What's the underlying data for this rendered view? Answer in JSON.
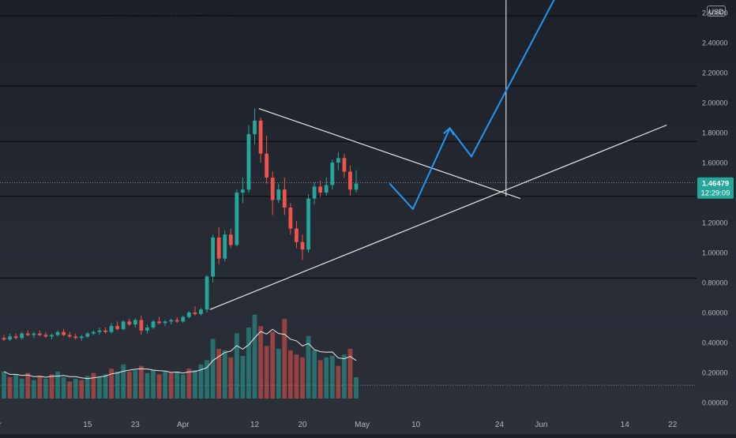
{
  "chart_data": {
    "type": "candlestick",
    "price_axis": {
      "currency": "USD",
      "tick_labels": [
        "2.60000",
        "2.40000",
        "2.20000",
        "2.00000",
        "1.80000",
        "1.60000",
        "1.40000",
        "1.20000",
        "1.00000",
        "0.80000",
        "0.60000",
        "0.40000",
        "0.20000",
        "0.00000"
      ],
      "tick_values": [
        2.6,
        2.4,
        2.2,
        2.0,
        1.8,
        1.6,
        1.4,
        1.2,
        1.0,
        0.8,
        0.6,
        0.4,
        0.2,
        0.0
      ],
      "ylim": [
        -0.08,
        2.7
      ]
    },
    "current_price": {
      "value": 1.46479,
      "label": "1.46479",
      "countdown": "12:29:09"
    },
    "time_axis": {
      "tick_labels": [
        "ar",
        "15",
        "23",
        "Apr",
        "12",
        "20",
        "May",
        "10",
        "24",
        "Jun",
        "14",
        "22"
      ],
      "tick_days": [
        -1,
        14,
        22,
        30,
        42,
        50,
        60,
        69,
        83,
        90,
        104,
        112
      ]
    },
    "colors": {
      "up": "#26a69a",
      "down": "#ef5350",
      "projection": "#2196f3",
      "lines": "#e8e8e8",
      "price_label_bg": "#26a69a"
    },
    "horizontal_levels": [
      2.58,
      2.11,
      1.74,
      1.375,
      0.83
    ],
    "dotted_levels": [
      1.465,
      0.115
    ],
    "trend_lines": [
      {
        "x": [
          34.5,
          111
        ],
        "y": [
          0.62,
          1.85
        ]
      },
      {
        "x": [
          42.7,
          86.5
        ],
        "y": [
          1.96,
          1.36
        ]
      }
    ],
    "upper_dashed_line": {
      "x": [
        -3,
        113
      ],
      "y": [
        2.52,
        2.74
      ]
    },
    "vertical_marker_day": 84.1,
    "projection_path": {
      "x": [
        64.6,
        68.5,
        74.7,
        78.3,
        93
      ],
      "y": [
        1.46,
        1.29,
        1.83,
        1.64,
        2.75
      ]
    },
    "candles": [
      {
        "o": 0.43,
        "h": 0.45,
        "l": 0.41,
        "c": 0.42
      },
      {
        "o": 0.42,
        "h": 0.46,
        "l": 0.41,
        "c": 0.44
      },
      {
        "o": 0.44,
        "h": 0.46,
        "l": 0.42,
        "c": 0.43
      },
      {
        "o": 0.43,
        "h": 0.47,
        "l": 0.42,
        "c": 0.46
      },
      {
        "o": 0.46,
        "h": 0.48,
        "l": 0.44,
        "c": 0.45
      },
      {
        "o": 0.45,
        "h": 0.47,
        "l": 0.43,
        "c": 0.46
      },
      {
        "o": 0.46,
        "h": 0.48,
        "l": 0.44,
        "c": 0.45
      },
      {
        "o": 0.45,
        "h": 0.47,
        "l": 0.43,
        "c": 0.44
      },
      {
        "o": 0.44,
        "h": 0.46,
        "l": 0.42,
        "c": 0.45
      },
      {
        "o": 0.45,
        "h": 0.48,
        "l": 0.44,
        "c": 0.47
      },
      {
        "o": 0.47,
        "h": 0.49,
        "l": 0.44,
        "c": 0.45
      },
      {
        "o": 0.45,
        "h": 0.47,
        "l": 0.43,
        "c": 0.44
      },
      {
        "o": 0.44,
        "h": 0.46,
        "l": 0.42,
        "c": 0.43
      },
      {
        "o": 0.43,
        "h": 0.45,
        "l": 0.41,
        "c": 0.44
      },
      {
        "o": 0.44,
        "h": 0.47,
        "l": 0.43,
        "c": 0.46
      },
      {
        "o": 0.46,
        "h": 0.48,
        "l": 0.45,
        "c": 0.47
      },
      {
        "o": 0.47,
        "h": 0.5,
        "l": 0.45,
        "c": 0.48
      },
      {
        "o": 0.48,
        "h": 0.5,
        "l": 0.46,
        "c": 0.47
      },
      {
        "o": 0.47,
        "h": 0.53,
        "l": 0.46,
        "c": 0.51
      },
      {
        "o": 0.51,
        "h": 0.54,
        "l": 0.48,
        "c": 0.49
      },
      {
        "o": 0.49,
        "h": 0.55,
        "l": 0.48,
        "c": 0.54
      },
      {
        "o": 0.54,
        "h": 0.56,
        "l": 0.51,
        "c": 0.52
      },
      {
        "o": 0.52,
        "h": 0.56,
        "l": 0.5,
        "c": 0.55
      },
      {
        "o": 0.55,
        "h": 0.58,
        "l": 0.45,
        "c": 0.48
      },
      {
        "o": 0.48,
        "h": 0.52,
        "l": 0.46,
        "c": 0.5
      },
      {
        "o": 0.5,
        "h": 0.55,
        "l": 0.49,
        "c": 0.54
      },
      {
        "o": 0.54,
        "h": 0.57,
        "l": 0.52,
        "c": 0.53
      },
      {
        "o": 0.53,
        "h": 0.55,
        "l": 0.51,
        "c": 0.54
      },
      {
        "o": 0.54,
        "h": 0.56,
        "l": 0.52,
        "c": 0.55
      },
      {
        "o": 0.55,
        "h": 0.57,
        "l": 0.53,
        "c": 0.54
      },
      {
        "o": 0.54,
        "h": 0.58,
        "l": 0.53,
        "c": 0.57
      },
      {
        "o": 0.57,
        "h": 0.61,
        "l": 0.56,
        "c": 0.6
      },
      {
        "o": 0.6,
        "h": 0.64,
        "l": 0.58,
        "c": 0.59
      },
      {
        "o": 0.59,
        "h": 0.63,
        "l": 0.58,
        "c": 0.62
      },
      {
        "o": 0.62,
        "h": 0.85,
        "l": 0.6,
        "c": 0.84
      },
      {
        "o": 0.84,
        "h": 1.12,
        "l": 0.8,
        "c": 1.1
      },
      {
        "o": 1.1,
        "h": 1.17,
        "l": 0.92,
        "c": 0.96
      },
      {
        "o": 0.96,
        "h": 1.15,
        "l": 0.94,
        "c": 1.12
      },
      {
        "o": 1.12,
        "h": 1.16,
        "l": 1.03,
        "c": 1.05
      },
      {
        "o": 1.05,
        "h": 1.42,
        "l": 1.04,
        "c": 1.4
      },
      {
        "o": 1.4,
        "h": 1.5,
        "l": 1.33,
        "c": 1.42
      },
      {
        "o": 1.42,
        "h": 1.85,
        "l": 1.4,
        "c": 1.79
      },
      {
        "o": 1.79,
        "h": 1.96,
        "l": 1.72,
        "c": 1.88
      },
      {
        "o": 1.88,
        "h": 1.9,
        "l": 1.6,
        "c": 1.66
      },
      {
        "o": 1.66,
        "h": 1.78,
        "l": 1.46,
        "c": 1.5
      },
      {
        "o": 1.5,
        "h": 1.54,
        "l": 1.25,
        "c": 1.35
      },
      {
        "o": 1.35,
        "h": 1.46,
        "l": 1.33,
        "c": 1.42
      },
      {
        "o": 1.42,
        "h": 1.5,
        "l": 1.25,
        "c": 1.3
      },
      {
        "o": 1.3,
        "h": 1.33,
        "l": 1.12,
        "c": 1.16
      },
      {
        "o": 1.16,
        "h": 1.21,
        "l": 1.03,
        "c": 1.07
      },
      {
        "o": 1.07,
        "h": 1.12,
        "l": 0.95,
        "c": 1.02
      },
      {
        "o": 1.02,
        "h": 1.39,
        "l": 1.0,
        "c": 1.36
      },
      {
        "o": 1.36,
        "h": 1.47,
        "l": 1.32,
        "c": 1.44
      },
      {
        "o": 1.44,
        "h": 1.48,
        "l": 1.37,
        "c": 1.4
      },
      {
        "o": 1.4,
        "h": 1.5,
        "l": 1.38,
        "c": 1.45
      },
      {
        "o": 1.45,
        "h": 1.62,
        "l": 1.42,
        "c": 1.6
      },
      {
        "o": 1.6,
        "h": 1.67,
        "l": 1.55,
        "c": 1.63
      },
      {
        "o": 1.63,
        "h": 1.66,
        "l": 1.5,
        "c": 1.54
      },
      {
        "o": 1.54,
        "h": 1.58,
        "l": 1.38,
        "c": 1.42
      },
      {
        "o": 1.42,
        "h": 1.55,
        "l": 1.4,
        "c": 1.46
      }
    ],
    "volume_bars": [
      {
        "v": 0.95,
        "up": true
      },
      {
        "v": 0.75,
        "up": false
      },
      {
        "v": 0.85,
        "up": true
      },
      {
        "v": 0.7,
        "up": true
      },
      {
        "v": 0.9,
        "up": false
      },
      {
        "v": 0.65,
        "up": true
      },
      {
        "v": 0.8,
        "up": false
      },
      {
        "v": 0.7,
        "up": true
      },
      {
        "v": 0.85,
        "up": false
      },
      {
        "v": 0.95,
        "up": true
      },
      {
        "v": 0.75,
        "up": true
      },
      {
        "v": 0.6,
        "up": false
      },
      {
        "v": 0.7,
        "up": true
      },
      {
        "v": 0.65,
        "up": false
      },
      {
        "v": 0.8,
        "up": true
      },
      {
        "v": 0.9,
        "up": false
      },
      {
        "v": 0.75,
        "up": true
      },
      {
        "v": 0.85,
        "up": true
      },
      {
        "v": 1.05,
        "up": false
      },
      {
        "v": 0.95,
        "up": true
      },
      {
        "v": 1.2,
        "up": true
      },
      {
        "v": 0.95,
        "up": false
      },
      {
        "v": 1.0,
        "up": true
      },
      {
        "v": 1.15,
        "up": false
      },
      {
        "v": 0.9,
        "up": true
      },
      {
        "v": 1.0,
        "up": true
      },
      {
        "v": 0.85,
        "up": false
      },
      {
        "v": 0.95,
        "up": true
      },
      {
        "v": 0.9,
        "up": false
      },
      {
        "v": 0.95,
        "up": true
      },
      {
        "v": 0.85,
        "up": true
      },
      {
        "v": 1.05,
        "up": false
      },
      {
        "v": 1.0,
        "up": true
      },
      {
        "v": 1.2,
        "up": true
      },
      {
        "v": 1.35,
        "up": true
      },
      {
        "v": 2.1,
        "up": true
      },
      {
        "v": 1.75,
        "up": false
      },
      {
        "v": 1.7,
        "up": true
      },
      {
        "v": 1.45,
        "up": false
      },
      {
        "v": 2.3,
        "up": true
      },
      {
        "v": 1.5,
        "up": true
      },
      {
        "v": 2.5,
        "up": true
      },
      {
        "v": 2.95,
        "up": true
      },
      {
        "v": 2.55,
        "up": false
      },
      {
        "v": 1.85,
        "up": false
      },
      {
        "v": 2.35,
        "up": false
      },
      {
        "v": 1.75,
        "up": true
      },
      {
        "v": 2.8,
        "up": false
      },
      {
        "v": 1.7,
        "up": false
      },
      {
        "v": 1.55,
        "up": false
      },
      {
        "v": 1.45,
        "up": false
      },
      {
        "v": 2.2,
        "up": true
      },
      {
        "v": 1.7,
        "up": true
      },
      {
        "v": 1.35,
        "up": false
      },
      {
        "v": 1.45,
        "up": true
      },
      {
        "v": 1.5,
        "up": true
      },
      {
        "v": 1.15,
        "up": false
      },
      {
        "v": 1.55,
        "up": true
      },
      {
        "v": 1.75,
        "up": false
      },
      {
        "v": 0.75,
        "up": true
      }
    ]
  }
}
